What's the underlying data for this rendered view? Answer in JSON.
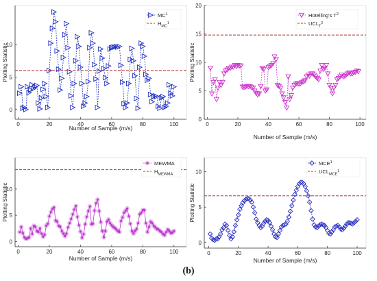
{
  "caption": "(b)",
  "colors": {
    "panel1": "#1f2fbf",
    "panel2": "#cc33cc",
    "panel3": "#bb33cc",
    "panel4": "#2a2fbf",
    "limit": "#b03030"
  },
  "chart_data": [
    {
      "type": "line",
      "marker": "triangle-right",
      "xlabel": "Number of Sample (m/s)",
      "ylabel": "Plotting Statistic",
      "xlim": [
        -2,
        108
      ],
      "ylim": [
        -1.5,
        16
      ],
      "xticks": [
        0,
        20,
        40,
        60,
        80,
        100
      ],
      "yticks": [
        0,
        5,
        10
      ],
      "grid": false,
      "legend": [
        {
          "main": "MC",
          "sup": "1",
          "sub": "",
          "style": "marker"
        },
        {
          "main": "H",
          "sup": "",
          "sub": "MC",
          "sup2": "1",
          "style": "dashed"
        }
      ],
      "limit": 6,
      "series": [
        {
          "x": [
            1,
            2,
            3,
            4,
            5,
            6,
            7,
            8,
            9,
            10,
            11,
            12,
            13,
            14,
            15,
            16,
            17,
            18,
            19,
            20,
            21,
            22,
            23,
            24,
            25,
            26,
            27,
            28,
            29,
            30,
            31,
            32,
            33,
            34,
            35,
            36,
            37,
            38,
            39,
            40,
            41,
            42,
            43,
            44,
            45,
            46,
            47,
            48,
            49,
            50,
            51,
            52,
            53,
            54,
            55,
            56,
            57,
            58,
            59,
            60,
            61,
            62,
            63,
            64,
            65,
            66,
            67,
            68,
            69,
            70,
            71,
            72,
            73,
            74,
            75,
            76,
            77,
            78,
            79,
            80,
            81,
            82,
            83,
            84,
            85,
            86,
            87,
            88,
            89,
            90,
            91,
            92,
            93,
            94,
            95,
            96,
            97,
            98,
            99,
            100
          ],
          "values": [
            2.5,
            3.5,
            0.2,
            0.3,
            0,
            3.5,
            2.6,
            3,
            3.8,
            3.2,
            3.5,
            3.7,
            1,
            0.1,
            1.8,
            3.1,
            4,
            2,
            0.3,
            6,
            10.2,
            12.5,
            15,
            13.5,
            9,
            6.2,
            3,
            4.8,
            8,
            11.5,
            13.2,
            9.5,
            5.8,
            2.1,
            0.3,
            4,
            7.5,
            11.2,
            9.7,
            6.5,
            4,
            0.5,
            1,
            2,
            4.3,
            9.5,
            11.8,
            10.2,
            6.9,
            4.7,
            0.3,
            5.9,
            9.3,
            7.9,
            6.3,
            4.9,
            4,
            6.7,
            9.3,
            9.5,
            9.6,
            9.6,
            9.7,
            9.6,
            9.7,
            6.8,
            4.2,
            0.9,
            0.3,
            1,
            4,
            7.7,
            9.4,
            7.5,
            5.2,
            1.7,
            0.2,
            6.5,
            10.2,
            9.7,
            8.2,
            5.4,
            4.5,
            4.8,
            2.3,
            1.2,
            2,
            2.1,
            2,
            0.5,
            0.2,
            1.8,
            2,
            0.3,
            0.5,
            1,
            3.8,
            2.5,
            2.1,
            3.5
          ]
        }
      ]
    },
    {
      "type": "line",
      "marker": "triangle-down",
      "xlabel": "Number of Sample (m/s)",
      "ylabel": "Plotting Statistic",
      "xlim": [
        -2,
        104
      ],
      "ylim": [
        0,
        20
      ],
      "xticks": [
        0,
        20,
        40,
        60,
        80,
        100
      ],
      "yticks": [
        0,
        5,
        10,
        15,
        20
      ],
      "grid": false,
      "legend": [
        {
          "main": "Hotelling's T",
          "sup": "2",
          "sub": "",
          "style": "marker"
        },
        {
          "main": "UCL",
          "sup": "",
          "sub": "T",
          "sup2": "2",
          "style": "dashed"
        }
      ],
      "limit": 14.8,
      "series": [
        {
          "x": [
            2,
            3,
            4,
            5,
            6,
            7,
            8,
            9,
            10,
            11,
            12,
            13,
            14,
            15,
            16,
            17,
            18,
            19,
            20,
            21,
            22,
            23,
            24,
            25,
            26,
            27,
            28,
            29,
            30,
            31,
            32,
            33,
            34,
            35,
            36,
            37,
            38,
            39,
            40,
            41,
            42,
            43,
            44,
            45,
            46,
            47,
            48,
            49,
            50,
            51,
            52,
            53,
            54,
            55,
            56,
            57,
            58,
            59,
            60,
            61,
            62,
            63,
            64,
            65,
            66,
            67,
            68,
            69,
            70,
            71,
            72,
            73,
            74,
            75,
            76,
            77,
            78,
            79,
            80,
            81,
            82,
            83,
            84,
            85,
            86,
            87,
            88,
            89,
            90,
            91,
            92,
            93,
            94,
            95,
            96,
            97,
            98,
            99
          ],
          "values": [
            9,
            4.5,
            6.5,
            7,
            3.5,
            5.5,
            6.5,
            6,
            6.5,
            8,
            8.5,
            8.7,
            9,
            9,
            9.2,
            9.2,
            9.5,
            9.3,
            9.5,
            9.4,
            9.4,
            5.7,
            5.6,
            5.7,
            5.8,
            5.8,
            5.8,
            5.6,
            5.5,
            5,
            4.6,
            4.3,
            4.5,
            5.8,
            9,
            8.8,
            5,
            5.2,
            9.1,
            9.3,
            9.5,
            9.8,
            11,
            10.5,
            6,
            5.8,
            5.5,
            4.5,
            3.8,
            3,
            2,
            7.5,
            3.5,
            4.2,
            5.5,
            6,
            6.2,
            6.3,
            6.2,
            6.3,
            6.5,
            6.6,
            6.8,
            7.5,
            7.8,
            7.6,
            8,
            8,
            7.8,
            7.5,
            7.2,
            7,
            8.5,
            9.5,
            8.8,
            9,
            9.5,
            8,
            6,
            5.5,
            4.5,
            5.5,
            6,
            7,
            7.2,
            7.5,
            7.8,
            7.5,
            7.6,
            7.8,
            8,
            8.2,
            8,
            8,
            8.2,
            8.3,
            8.5,
            8.4
          ]
        }
      ]
    },
    {
      "type": "line",
      "marker": "star",
      "xlabel": "Number of Sample (m/s)",
      "ylabel": "Plotting Statistic",
      "xlim": [
        -2,
        108
      ],
      "ylim": [
        -1,
        16
      ],
      "xticks": [
        0,
        20,
        40,
        60,
        80,
        100
      ],
      "yticks": [
        0,
        5,
        10
      ],
      "grid": false,
      "legend": [
        {
          "main": "MEWMA",
          "sup": "",
          "sub": "",
          "style": "marker"
        },
        {
          "main": "H",
          "sup": "",
          "sub": "MEWMA",
          "sup2": "",
          "style": "dashed"
        }
      ],
      "limit": 13.7,
      "series": [
        {
          "x": [
            1,
            2,
            3,
            4,
            5,
            6,
            7,
            8,
            9,
            10,
            11,
            12,
            13,
            14,
            15,
            16,
            17,
            18,
            19,
            20,
            21,
            22,
            23,
            24,
            25,
            26,
            27,
            28,
            29,
            30,
            31,
            32,
            33,
            34,
            35,
            36,
            37,
            38,
            39,
            40,
            41,
            42,
            43,
            44,
            45,
            46,
            47,
            48,
            49,
            50,
            51,
            52,
            53,
            54,
            55,
            56,
            57,
            58,
            59,
            60,
            61,
            62,
            63,
            64,
            65,
            66,
            67,
            68,
            69,
            70,
            71,
            72,
            73,
            74,
            75,
            76,
            77,
            78,
            79,
            80,
            81,
            82,
            83,
            84,
            85,
            86,
            87,
            88,
            89,
            90,
            91,
            92,
            93,
            94,
            95,
            96,
            97,
            98,
            99,
            100
          ],
          "values": [
            1.8,
            2.8,
            1.6,
            0.8,
            0.5,
            0.6,
            0.8,
            2.5,
            1.4,
            3,
            2.8,
            2,
            1.8,
            2.5,
            1.5,
            0.9,
            1.3,
            3,
            3.4,
            4.8,
            5.6,
            6.2,
            6.5,
            4,
            3.8,
            3,
            2.8,
            2,
            1.5,
            1,
            1.5,
            2.7,
            3.5,
            4.3,
            5.2,
            6.1,
            6.8,
            4.7,
            3.1,
            1.9,
            0.7,
            1.4,
            3.3,
            4.7,
            5.8,
            6.7,
            3.3,
            3.4,
            5.9,
            7.3,
            8,
            5.8,
            3.7,
            2,
            0.8,
            2,
            3.8,
            4.2,
            3.5,
            3.1,
            2.8,
            2.6,
            2.3,
            2,
            1.8,
            3.9,
            4.6,
            5.5,
            5.9,
            6.3,
            4.8,
            3.4,
            2,
            1.5,
            2,
            2.4,
            3.5,
            5.2,
            5.5,
            6,
            6,
            3.5,
            1.8,
            2.8,
            3.8,
            3.5,
            3,
            2.7,
            2.4,
            2.3,
            2,
            1.8,
            1.4,
            1.2,
            1.8,
            2.3,
            2,
            1.6,
            1.7,
            2
          ]
        }
      ]
    },
    {
      "type": "line",
      "marker": "diamond",
      "xlabel": "Number of Sample (m/s)",
      "ylabel": "Plotting Statistic",
      "xlim": [
        -3,
        106
      ],
      "ylim": [
        -0.8,
        12
      ],
      "xticks": [
        0,
        20,
        40,
        60,
        80,
        100
      ],
      "yticks": [
        0,
        5,
        10
      ],
      "grid": false,
      "legend": [
        {
          "main": "MCE",
          "sup": "1",
          "sub": "",
          "style": "marker"
        },
        {
          "main": "UCL",
          "sup": "",
          "sub": "MCE",
          "sup2": "1",
          "style": "dashed"
        }
      ],
      "limit": 6.6,
      "series": [
        {
          "x": [
            1,
            2,
            3,
            4,
            5,
            6,
            7,
            8,
            9,
            10,
            11,
            12,
            13,
            14,
            15,
            16,
            17,
            18,
            19,
            20,
            21,
            22,
            23,
            24,
            25,
            26,
            27,
            28,
            29,
            30,
            31,
            32,
            33,
            34,
            35,
            36,
            37,
            38,
            39,
            40,
            41,
            42,
            43,
            44,
            45,
            46,
            47,
            48,
            49,
            50,
            51,
            52,
            53,
            54,
            55,
            56,
            57,
            58,
            59,
            60,
            61,
            62,
            63,
            64,
            65,
            66,
            67,
            68,
            69,
            70,
            71,
            72,
            73,
            74,
            75,
            76,
            77,
            78,
            79,
            80,
            81,
            82,
            83,
            84,
            85,
            86,
            87,
            88,
            89,
            90,
            91,
            92,
            93,
            94,
            95,
            96,
            97,
            98,
            99,
            100
          ],
          "values": [
            1.2,
            0.6,
            0.4,
            0.3,
            0.5,
            0.5,
            0.8,
            1.2,
            1.8,
            2.1,
            2.6,
            2.4,
            1.7,
            1,
            0.5,
            0.8,
            1.5,
            2.4,
            3.2,
            3.9,
            4.7,
            5.2,
            5.6,
            5.9,
            6.1,
            6.2,
            6.2,
            6,
            5.7,
            5,
            4.2,
            3.3,
            2.8,
            2.4,
            2.1,
            2.3,
            2.7,
            3,
            3.2,
            3.1,
            2.8,
            2.3,
            1.8,
            1.2,
            0.8,
            0.7,
            1.2,
            1.7,
            2.2,
            2.4,
            2.5,
            2.6,
            3,
            3.6,
            4.4,
            5.2,
            6,
            6.8,
            7.4,
            7.9,
            8.3,
            8.5,
            8.5,
            8.3,
            7.9,
            7.3,
            6.6,
            5.7,
            4.5,
            3.3,
            2.5,
            2.2,
            2.1,
            2.3,
            2.5,
            2.6,
            2.5,
            2.4,
            2.1,
            1.7,
            1.3,
            1.2,
            1.5,
            1.8,
            2.2,
            2.3,
            2.4,
            2.2,
            1.9,
            1.8,
            2,
            2.3,
            2.6,
            2.8,
            2.8,
            2.7,
            2.6,
            2.8,
            3,
            3.2
          ]
        }
      ]
    }
  ]
}
